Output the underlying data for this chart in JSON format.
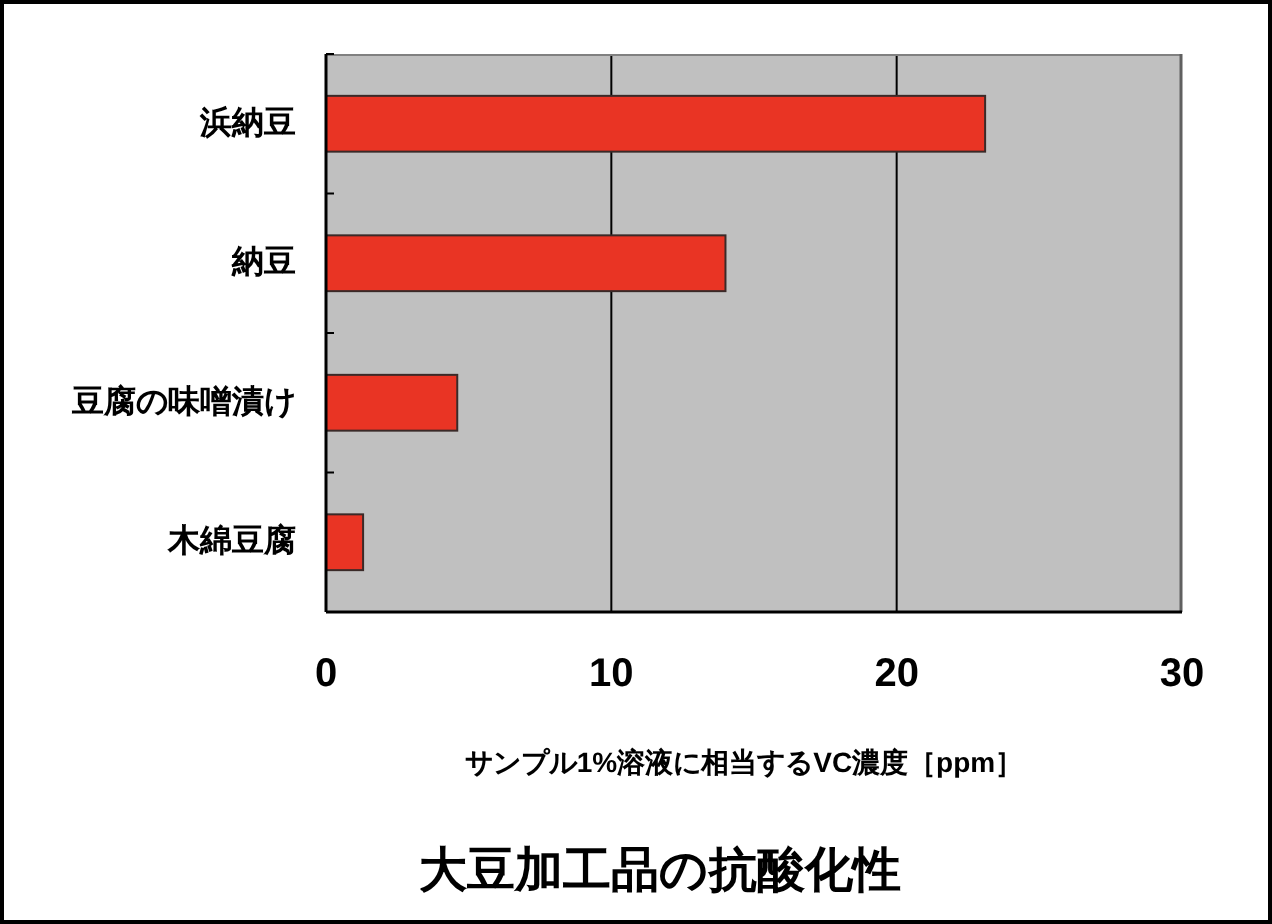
{
  "chart_data": {
    "type": "bar",
    "orientation": "horizontal",
    "title": "大豆加工品の抗酸化性",
    "xlabel": "サンプル1%溶液に相当するVC濃度［ppm］",
    "categories": [
      "浜納豆",
      "納豆",
      "豆腐の味噌漬け",
      "木綿豆腐"
    ],
    "values": [
      23.1,
      14.0,
      4.6,
      1.3
    ],
    "color": "#e93424",
    "xlim": [
      0,
      30
    ],
    "xticks": [
      0,
      10,
      20,
      30
    ],
    "grid": "x"
  }
}
